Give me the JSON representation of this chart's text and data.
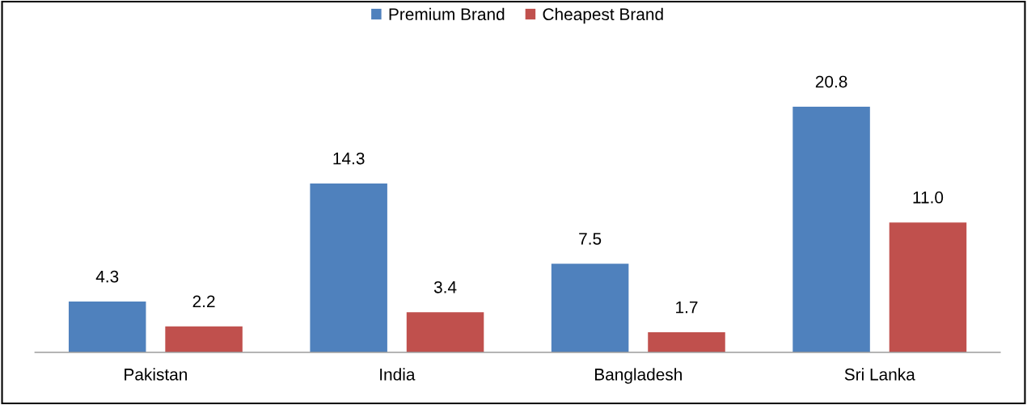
{
  "chart_data": {
    "type": "bar",
    "categories": [
      "Pakistan",
      "India",
      "Bangladesh",
      "Sri Lanka"
    ],
    "series": [
      {
        "name": "Premium Brand",
        "color": "#4f81bd",
        "values": [
          4.3,
          14.3,
          7.5,
          20.8
        ],
        "value_labels": [
          "4.3",
          "14.3",
          "7.5",
          "20.8"
        ]
      },
      {
        "name": "Cheapest Brand",
        "color": "#c0504d",
        "values": [
          2.2,
          3.4,
          1.7,
          11.0
        ],
        "value_labels": [
          "2.2",
          "3.4",
          "1.7",
          "11.0"
        ]
      }
    ],
    "grid": false,
    "legend": "top"
  }
}
